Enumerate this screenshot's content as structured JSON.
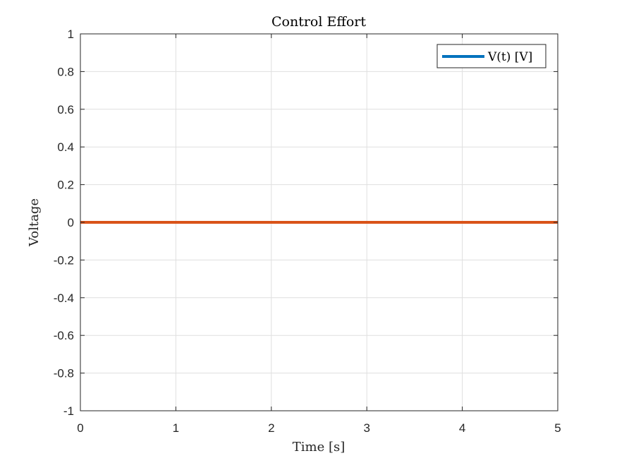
{
  "chart_data": {
    "type": "line",
    "title": "Control Effort",
    "xlabel": "Time [s]",
    "ylabel": "Voltage",
    "xlim": [
      0,
      5
    ],
    "ylim": [
      -1,
      1
    ],
    "xticks": [
      0,
      1,
      2,
      3,
      4,
      5
    ],
    "xtick_labels": [
      "0",
      "1",
      "2",
      "3",
      "4",
      "5"
    ],
    "yticks": [
      -1,
      -0.8,
      -0.6,
      -0.4,
      -0.2,
      0,
      0.2,
      0.4,
      0.6,
      0.8,
      1
    ],
    "ytick_labels": [
      "-1",
      "-0.8",
      "-0.6",
      "-0.4",
      "-0.2",
      "0",
      "0.2",
      "0.4",
      "0.6",
      "0.8",
      "1"
    ],
    "grid": true,
    "legend": {
      "placement": "top-right",
      "entries": [
        "V(t) [V]"
      ]
    },
    "series": [
      {
        "name": "V(t) [V]",
        "color": "#0072BD",
        "x": [
          0,
          5
        ],
        "y": [
          0,
          0
        ]
      },
      {
        "color": "#D95319",
        "x": [
          0,
          5
        ],
        "y": [
          0,
          0
        ]
      }
    ]
  }
}
